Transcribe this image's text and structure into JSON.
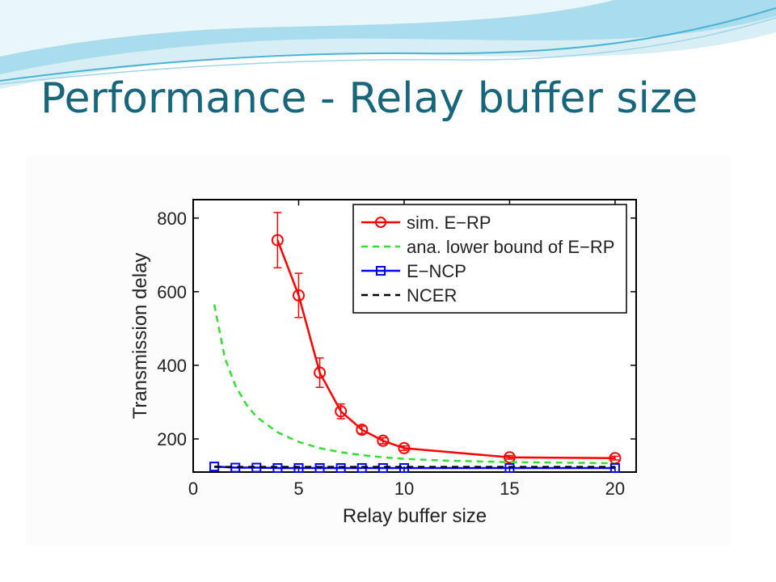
{
  "slide": {
    "title": "Performance - Relay buffer size"
  },
  "colors": {
    "title": "#17667b",
    "wave_light": "#cfe9f2",
    "wave_mid": "#8fd0e6",
    "wave_dark": "#3aa6cc",
    "series_sim_erp": "#ff0000",
    "series_ana_lb": "#33dd33",
    "series_encp": "#0000ff",
    "series_ncer": "#000000"
  },
  "chart_data": {
    "type": "line",
    "title": "",
    "xlabel": "Relay buffer size",
    "ylabel": "Transmission delay",
    "xlim": [
      0,
      21
    ],
    "ylim": [
      110,
      850
    ],
    "xticks": [
      0,
      5,
      10,
      15,
      20
    ],
    "yticks": [
      200,
      400,
      600,
      800
    ],
    "grid": false,
    "legend_position": "top-right",
    "series": [
      {
        "name": "sim. E−RP",
        "style": "solid-circle",
        "color": "#ff0000",
        "x": [
          4,
          5,
          6,
          7,
          8,
          9,
          10,
          15,
          20
        ],
        "y": [
          740,
          590,
          380,
          275,
          225,
          195,
          175,
          150,
          148
        ],
        "err": [
          75,
          60,
          40,
          20,
          10,
          8,
          6,
          5,
          5
        ]
      },
      {
        "name": "ana. lower bound of E−RP",
        "style": "dashed",
        "color": "#33dd33",
        "x": [
          1,
          1.5,
          2,
          2.5,
          3,
          4,
          5,
          6,
          7,
          8,
          9,
          10,
          12,
          15,
          20
        ],
        "y": [
          565,
          420,
          345,
          295,
          260,
          218,
          192,
          175,
          164,
          156,
          150,
          146,
          141,
          137,
          134
        ]
      },
      {
        "name": "E−NCP",
        "style": "solid-square",
        "color": "#0000ff",
        "x": [
          1,
          2,
          3,
          4,
          5,
          6,
          7,
          8,
          9,
          10,
          15,
          20
        ],
        "y": [
          125,
          122,
          122,
          121,
          121,
          121,
          121,
          121,
          121,
          121,
          121,
          121
        ]
      },
      {
        "name": "NCER",
        "style": "dashed",
        "color": "#000000",
        "x": [
          1,
          20
        ],
        "y": [
          124,
          124
        ]
      }
    ]
  }
}
